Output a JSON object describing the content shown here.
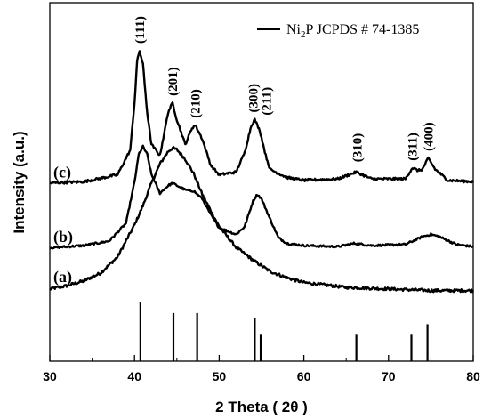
{
  "chart_data": {
    "type": "line",
    "xlabel": "2 Theta ( 2θ )",
    "ylabel": "Intensity (a.u.)",
    "xlim": [
      30,
      80
    ],
    "xticks": [
      30,
      40,
      50,
      60,
      70,
      80
    ],
    "xtick_labels": [
      "30",
      "40",
      "50",
      "60",
      "70",
      "80"
    ],
    "grid": false,
    "legend": {
      "position": "top-right",
      "text": "Ni2P JCPDS # 74-1385",
      "text_main": "Ni",
      "text_sub": "2",
      "text_rest": "P JCPDS # 74-1385"
    },
    "series": [
      {
        "label": "(a)",
        "x": [
          30,
          32,
          34,
          36,
          38,
          40,
          41,
          42,
          43,
          44,
          44.5,
          45,
          46,
          47,
          48,
          50,
          52,
          54,
          56,
          58,
          60,
          65,
          70,
          75,
          80
        ],
        "y": [
          0.04,
          0.06,
          0.09,
          0.14,
          0.24,
          0.44,
          0.56,
          0.7,
          0.82,
          0.9,
          0.92,
          0.91,
          0.85,
          0.76,
          0.63,
          0.43,
          0.3,
          0.22,
          0.15,
          0.11,
          0.08,
          0.05,
          0.04,
          0.03,
          0.03
        ]
      },
      {
        "label": "(b)",
        "x": [
          30,
          34,
          37,
          39,
          40,
          40.5,
          41,
          41.5,
          42,
          43,
          44,
          44.5,
          45,
          46,
          47,
          48,
          49,
          50,
          52,
          53,
          54,
          54.5,
          55,
          56,
          57,
          58,
          60,
          64,
          66,
          68,
          72,
          74,
          75,
          76,
          78,
          80
        ],
        "y": [
          0.06,
          0.08,
          0.12,
          0.28,
          0.65,
          0.9,
          0.97,
          0.9,
          0.72,
          0.55,
          0.62,
          0.64,
          0.62,
          0.58,
          0.57,
          0.5,
          0.36,
          0.24,
          0.18,
          0.25,
          0.48,
          0.54,
          0.5,
          0.32,
          0.15,
          0.1,
          0.08,
          0.07,
          0.1,
          0.08,
          0.09,
          0.16,
          0.18,
          0.16,
          0.09,
          0.07
        ]
      },
      {
        "label": "(c)",
        "x": [
          30,
          34,
          38,
          39.5,
          40,
          40.3,
          40.6,
          41,
          41.5,
          42,
          43,
          44,
          44.5,
          45,
          46,
          46.8,
          47.2,
          48,
          49,
          50,
          52,
          53,
          53.8,
          54.2,
          54.8,
          55.5,
          56,
          58,
          60,
          64,
          66.2,
          68,
          72,
          72.8,
          73.5,
          74,
          74.7,
          75.5,
          77,
          80
        ],
        "y": [
          0.04,
          0.05,
          0.1,
          0.28,
          0.62,
          0.92,
          1.0,
          0.9,
          0.55,
          0.32,
          0.24,
          0.56,
          0.62,
          0.5,
          0.32,
          0.44,
          0.46,
          0.36,
          0.17,
          0.1,
          0.12,
          0.26,
          0.46,
          0.5,
          0.42,
          0.24,
          0.14,
          0.08,
          0.06,
          0.07,
          0.12,
          0.07,
          0.07,
          0.15,
          0.13,
          0.14,
          0.22,
          0.14,
          0.06,
          0.05
        ]
      }
    ],
    "peak_labels": [
      {
        "text": "(111)",
        "x": 40.6,
        "ymark": 1.0,
        "curve": 2
      },
      {
        "text": "(201)",
        "x": 44.5,
        "ymark": 0.62,
        "curve": 2
      },
      {
        "text": "(210)",
        "x": 47.2,
        "ymark": 0.46,
        "curve": 2
      },
      {
        "text": "(300)",
        "x": 54.0,
        "ymark": 0.5,
        "curve": 2
      },
      {
        "text": "(211)",
        "x": 55.6,
        "ymark": 0.48,
        "curve": 2
      },
      {
        "text": "(310)",
        "x": 66.3,
        "ymark": 0.14,
        "curve": 2
      },
      {
        "text": "(311)",
        "x": 72.8,
        "ymark": 0.15,
        "curve": 2
      },
      {
        "text": "(400)",
        "x": 74.7,
        "ymark": 0.22,
        "curve": 2
      }
    ],
    "reference_lines": {
      "name": "Ni2P JCPDS # 74-1385",
      "x": [
        40.7,
        44.6,
        47.4,
        54.2,
        54.9,
        66.2,
        72.7,
        74.6
      ],
      "intensity": [
        1.0,
        0.82,
        0.82,
        0.73,
        0.45,
        0.45,
        0.45,
        0.63
      ]
    }
  }
}
